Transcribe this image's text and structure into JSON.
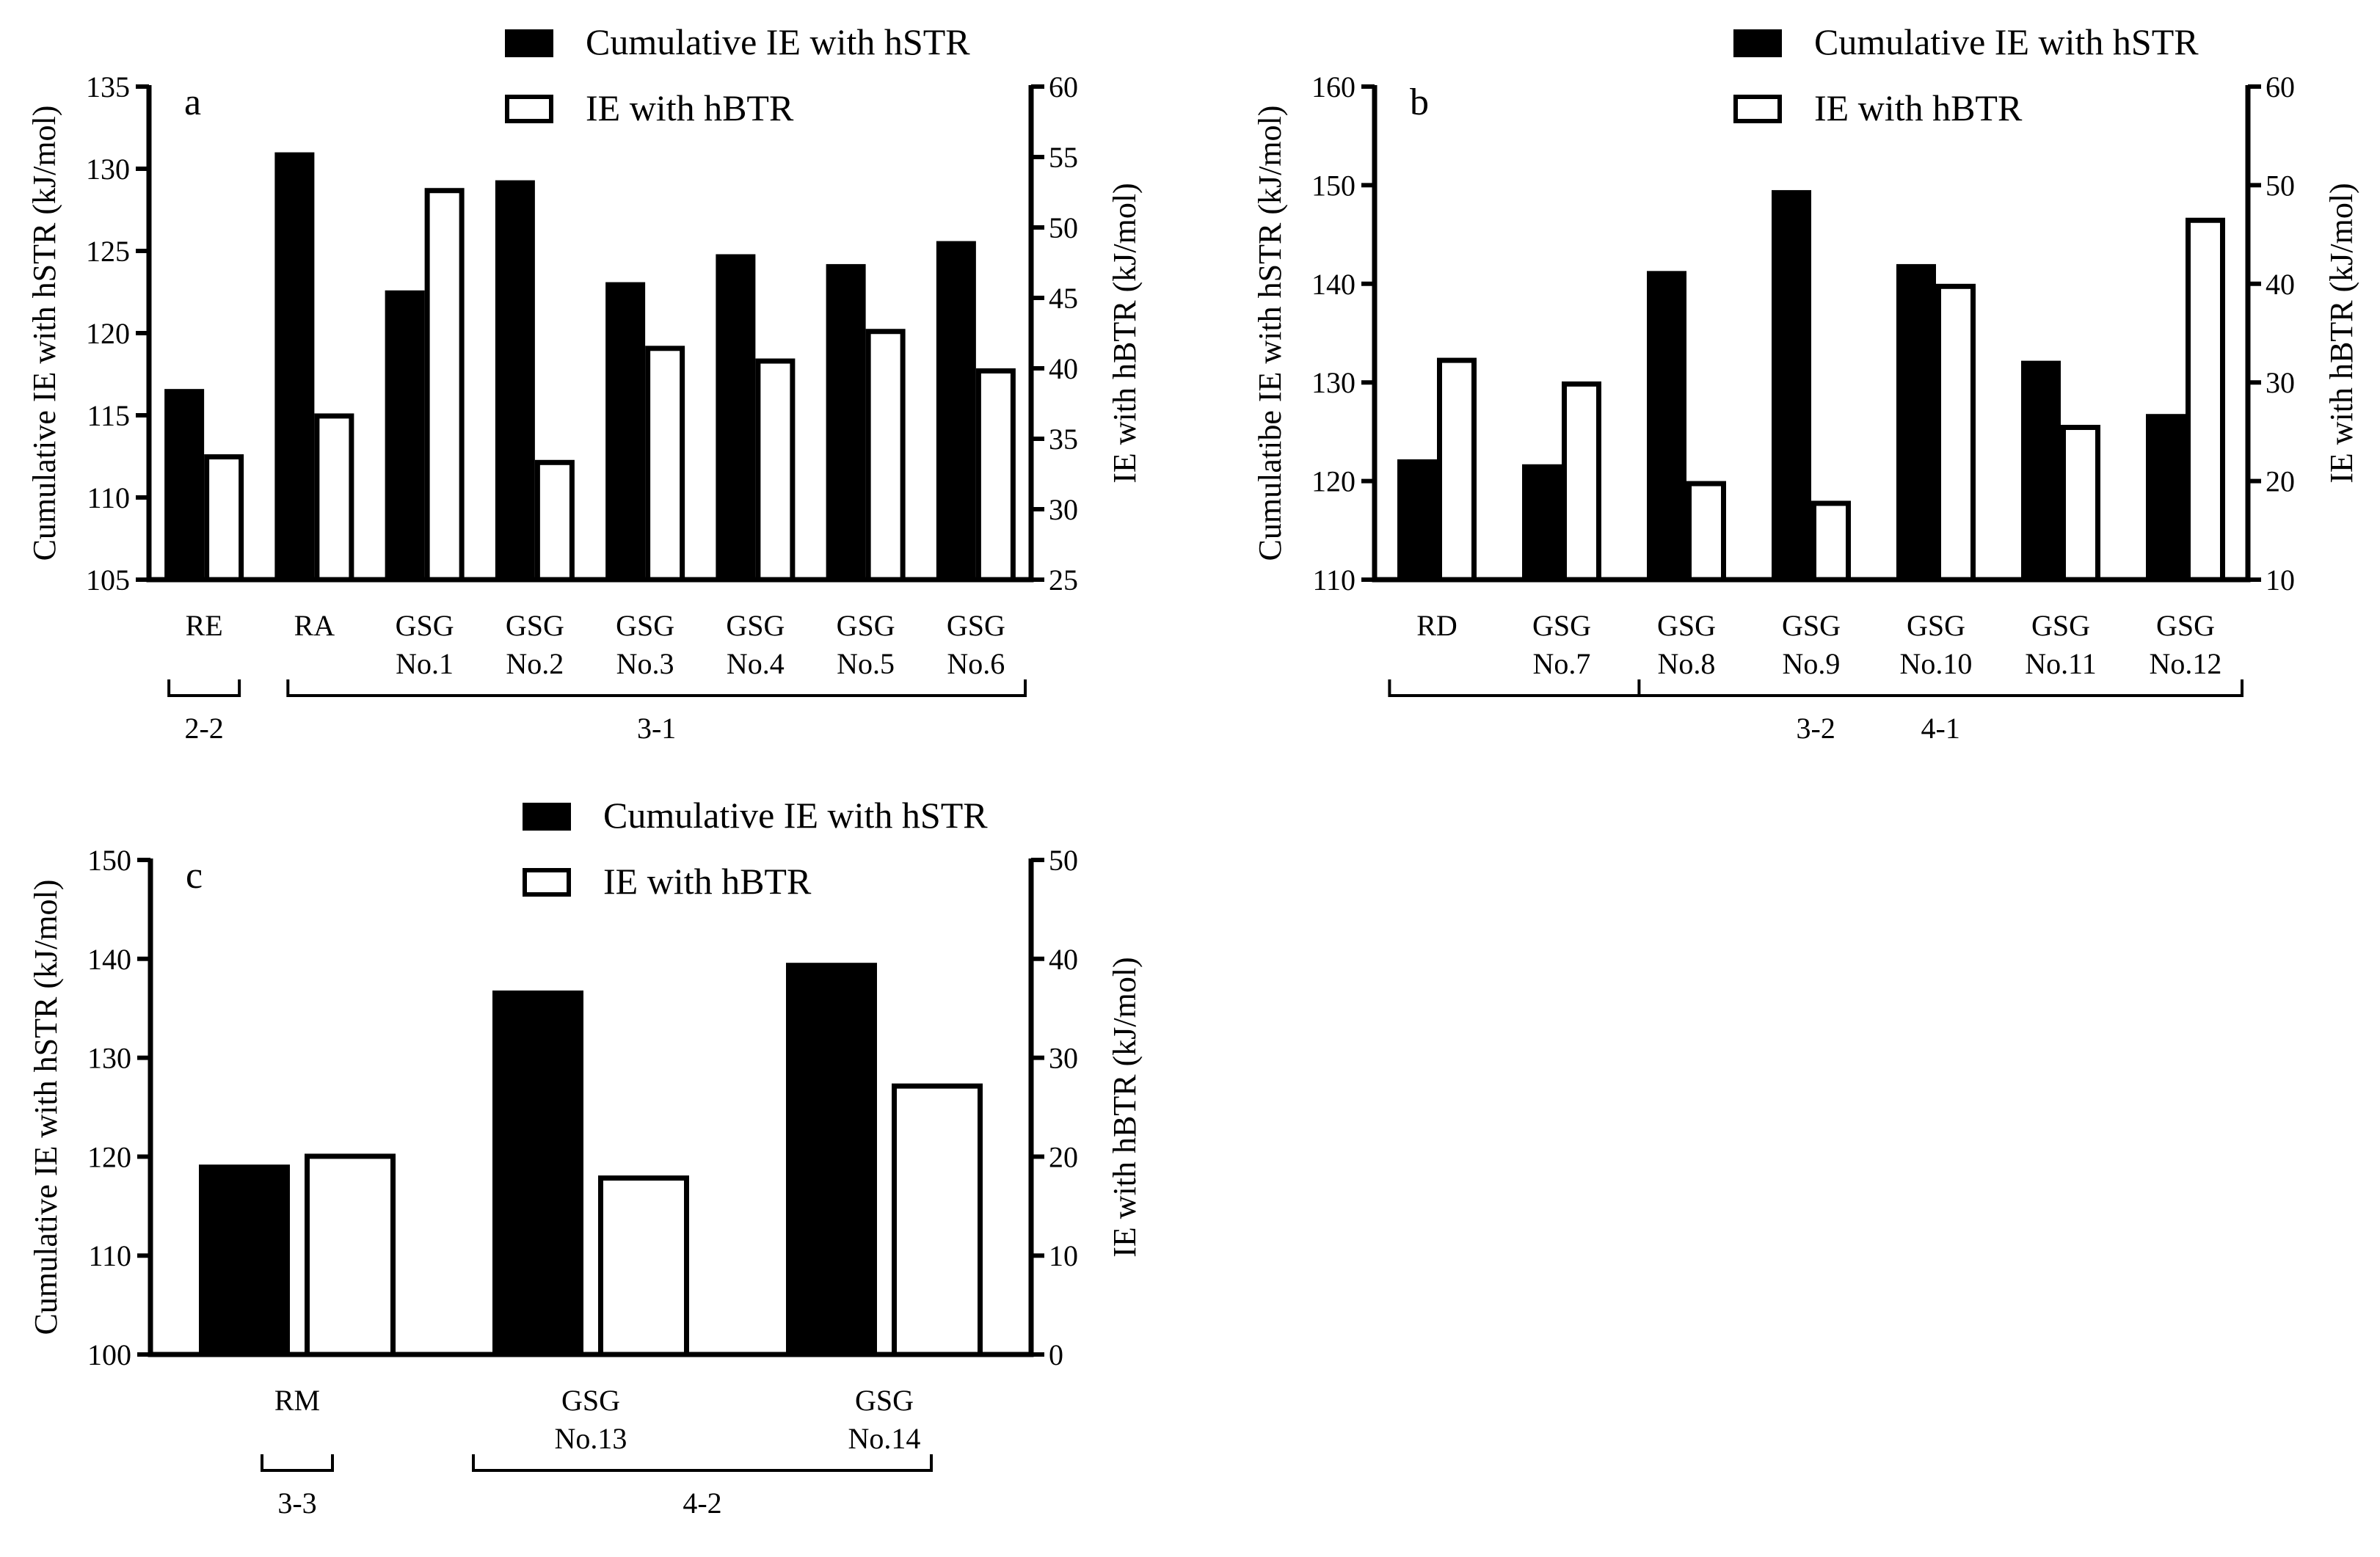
{
  "colors": {
    "black_bar": "#000000",
    "white_bar": "#ffffff",
    "stroke": "#000000"
  },
  "legend": {
    "cum": "Cumulative IE with hSTR",
    "ie": "IE with hBTR"
  },
  "chart_data": [
    {
      "id": "a",
      "type": "bar",
      "panel_label": "a",
      "ylabel_left": "Cumulative IE with hSTR (kJ/mol)",
      "ylabel_right": "IE with hBTR (kJ/mol)",
      "ylim_left": [
        105,
        135
      ],
      "yticks_left": [
        "105",
        "110",
        "115",
        "120",
        "125",
        "130",
        "135"
      ],
      "ylim_right": [
        25,
        60
      ],
      "yticks_right": [
        "25",
        "30",
        "35",
        "40",
        "45",
        "50",
        "55",
        "60"
      ],
      "categories": [
        [
          "RE"
        ],
        [
          "RA"
        ],
        [
          "GSG",
          "No.1"
        ],
        [
          "GSG",
          "No.2"
        ],
        [
          "GSG",
          "No.3"
        ],
        [
          "GSG",
          "No.4"
        ],
        [
          "GSG",
          "No.5"
        ],
        [
          "GSG",
          "No.6"
        ]
      ],
      "series": [
        {
          "name": "Cumulative IE with hSTR",
          "axis": "left",
          "values": [
            116.6,
            131.0,
            122.6,
            129.3,
            123.1,
            124.8,
            124.2,
            125.6
          ]
        },
        {
          "name": "IE with hBTR",
          "axis": "right",
          "values": [
            33.9,
            36.8,
            52.8,
            33.5,
            41.6,
            40.7,
            42.8,
            40.0
          ]
        }
      ],
      "groups": [
        {
          "label": "2-2",
          "from": 0,
          "to": 0
        },
        {
          "label": "3-1",
          "from": 1,
          "to": 7
        }
      ]
    },
    {
      "id": "b",
      "type": "bar",
      "panel_label": "b",
      "ylabel_left": "Cumulatibe IE with hSTR (kJ/mol)",
      "ylabel_right": "IE with hBTR (kJ/mol)",
      "ylim_left": [
        110,
        160
      ],
      "yticks_left": [
        "110",
        "120",
        "130",
        "140",
        "150",
        "160"
      ],
      "ylim_right": [
        10,
        60
      ],
      "yticks_right": [
        "10",
        "20",
        "30",
        "40",
        "50",
        "60"
      ],
      "categories": [
        [
          "RD"
        ],
        [
          "GSG",
          "No.7"
        ],
        [
          "GSG",
          "No.8"
        ],
        [
          "GSG",
          "No.9"
        ],
        [
          "GSG",
          "No.10"
        ],
        [
          "GSG",
          "No.11"
        ],
        [
          "GSG",
          "No.12"
        ]
      ],
      "series": [
        {
          "name": "Cumulative IE with hSTR",
          "axis": "left",
          "values": [
            122.2,
            121.7,
            141.3,
            149.5,
            142.0,
            132.2,
            126.8
          ]
        },
        {
          "name": "IE with hBTR",
          "axis": "right",
          "values": [
            32.5,
            30.1,
            20.0,
            18.0,
            40.0,
            25.7,
            46.7
          ]
        }
      ],
      "groups": [
        {
          "label": "3-2",
          "from": 0,
          "to": 1
        },
        {
          "label": "4-1",
          "from": 2,
          "to": 6
        }
      ]
    },
    {
      "id": "c",
      "type": "bar",
      "panel_label": "c",
      "ylabel_left": "Cumulative IE with hSTR (kJ/mol)",
      "ylabel_right": "IE with hBTR (kJ/mol)",
      "ylim_left": [
        100,
        150
      ],
      "yticks_left": [
        "100",
        "110",
        "120",
        "130",
        "140",
        "150"
      ],
      "ylim_right": [
        0,
        50
      ],
      "yticks_right": [
        "0",
        "10",
        "20",
        "30",
        "40",
        "50"
      ],
      "categories": [
        [
          "RM"
        ],
        [
          "GSG",
          "No.13"
        ],
        [
          "GSG",
          "No.14"
        ]
      ],
      "series": [
        {
          "name": "Cumulative IE with hSTR",
          "axis": "left",
          "values": [
            119.2,
            136.8,
            139.6
          ]
        },
        {
          "name": "IE with hBTR",
          "axis": "right",
          "values": [
            20.3,
            18.1,
            27.4
          ]
        }
      ],
      "groups": [
        {
          "label": "3-3",
          "from": 0,
          "to": 0
        },
        {
          "label": "4-2",
          "from": 1,
          "to": 2
        }
      ]
    }
  ]
}
